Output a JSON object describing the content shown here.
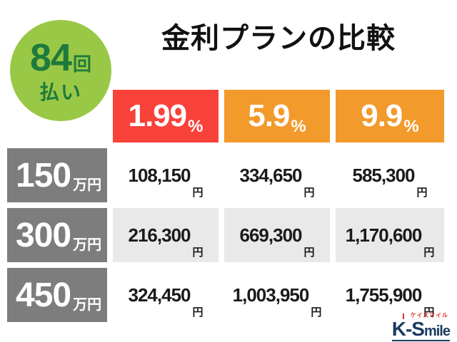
{
  "badge": {
    "count": "84",
    "count_suffix": "回",
    "label": "払い"
  },
  "title": "金利プランの比較",
  "table": {
    "rate_headers": [
      {
        "rate": "1.99",
        "suffix": "%"
      },
      {
        "rate": "5.9",
        "suffix": "%"
      },
      {
        "rate": "9.9",
        "suffix": "%"
      }
    ],
    "rows": [
      {
        "amount": "150",
        "unit": "万円",
        "values": [
          "108,150",
          "334,650",
          "585,300"
        ]
      },
      {
        "amount": "300",
        "unit": "万円",
        "values": [
          "216,300",
          "669,300",
          "1,170,600"
        ]
      },
      {
        "amount": "450",
        "unit": "万円",
        "values": [
          "324,450",
          "1,003,950",
          "1,755,900"
        ]
      }
    ],
    "currency_suffix": "円"
  },
  "logo": {
    "text_main": "K-S",
    "text_sub": "mile",
    "katakana": "ケイスマイル"
  },
  "colors": {
    "badge_bg": "#99c846",
    "badge_text": "#1e7a3c",
    "rate_red": "#f8423a",
    "rate_orange": "#f29a2b",
    "row_header_gray": "#7d7d7d",
    "row_shade": "#e9e9e9",
    "logo_navy": "#1b3a5f",
    "logo_red": "#e0322b"
  },
  "chart_data": {
    "type": "table",
    "title": "金利プランの比較",
    "installments": "84回払い",
    "columns": [
      "1.99%",
      "5.9%",
      "9.9%"
    ],
    "row_labels": [
      "150万円",
      "300万円",
      "450万円"
    ],
    "values_yen": [
      [
        108150,
        334650,
        585300
      ],
      [
        216300,
        669300,
        1170600
      ],
      [
        324450,
        1003950,
        1755900
      ]
    ]
  }
}
